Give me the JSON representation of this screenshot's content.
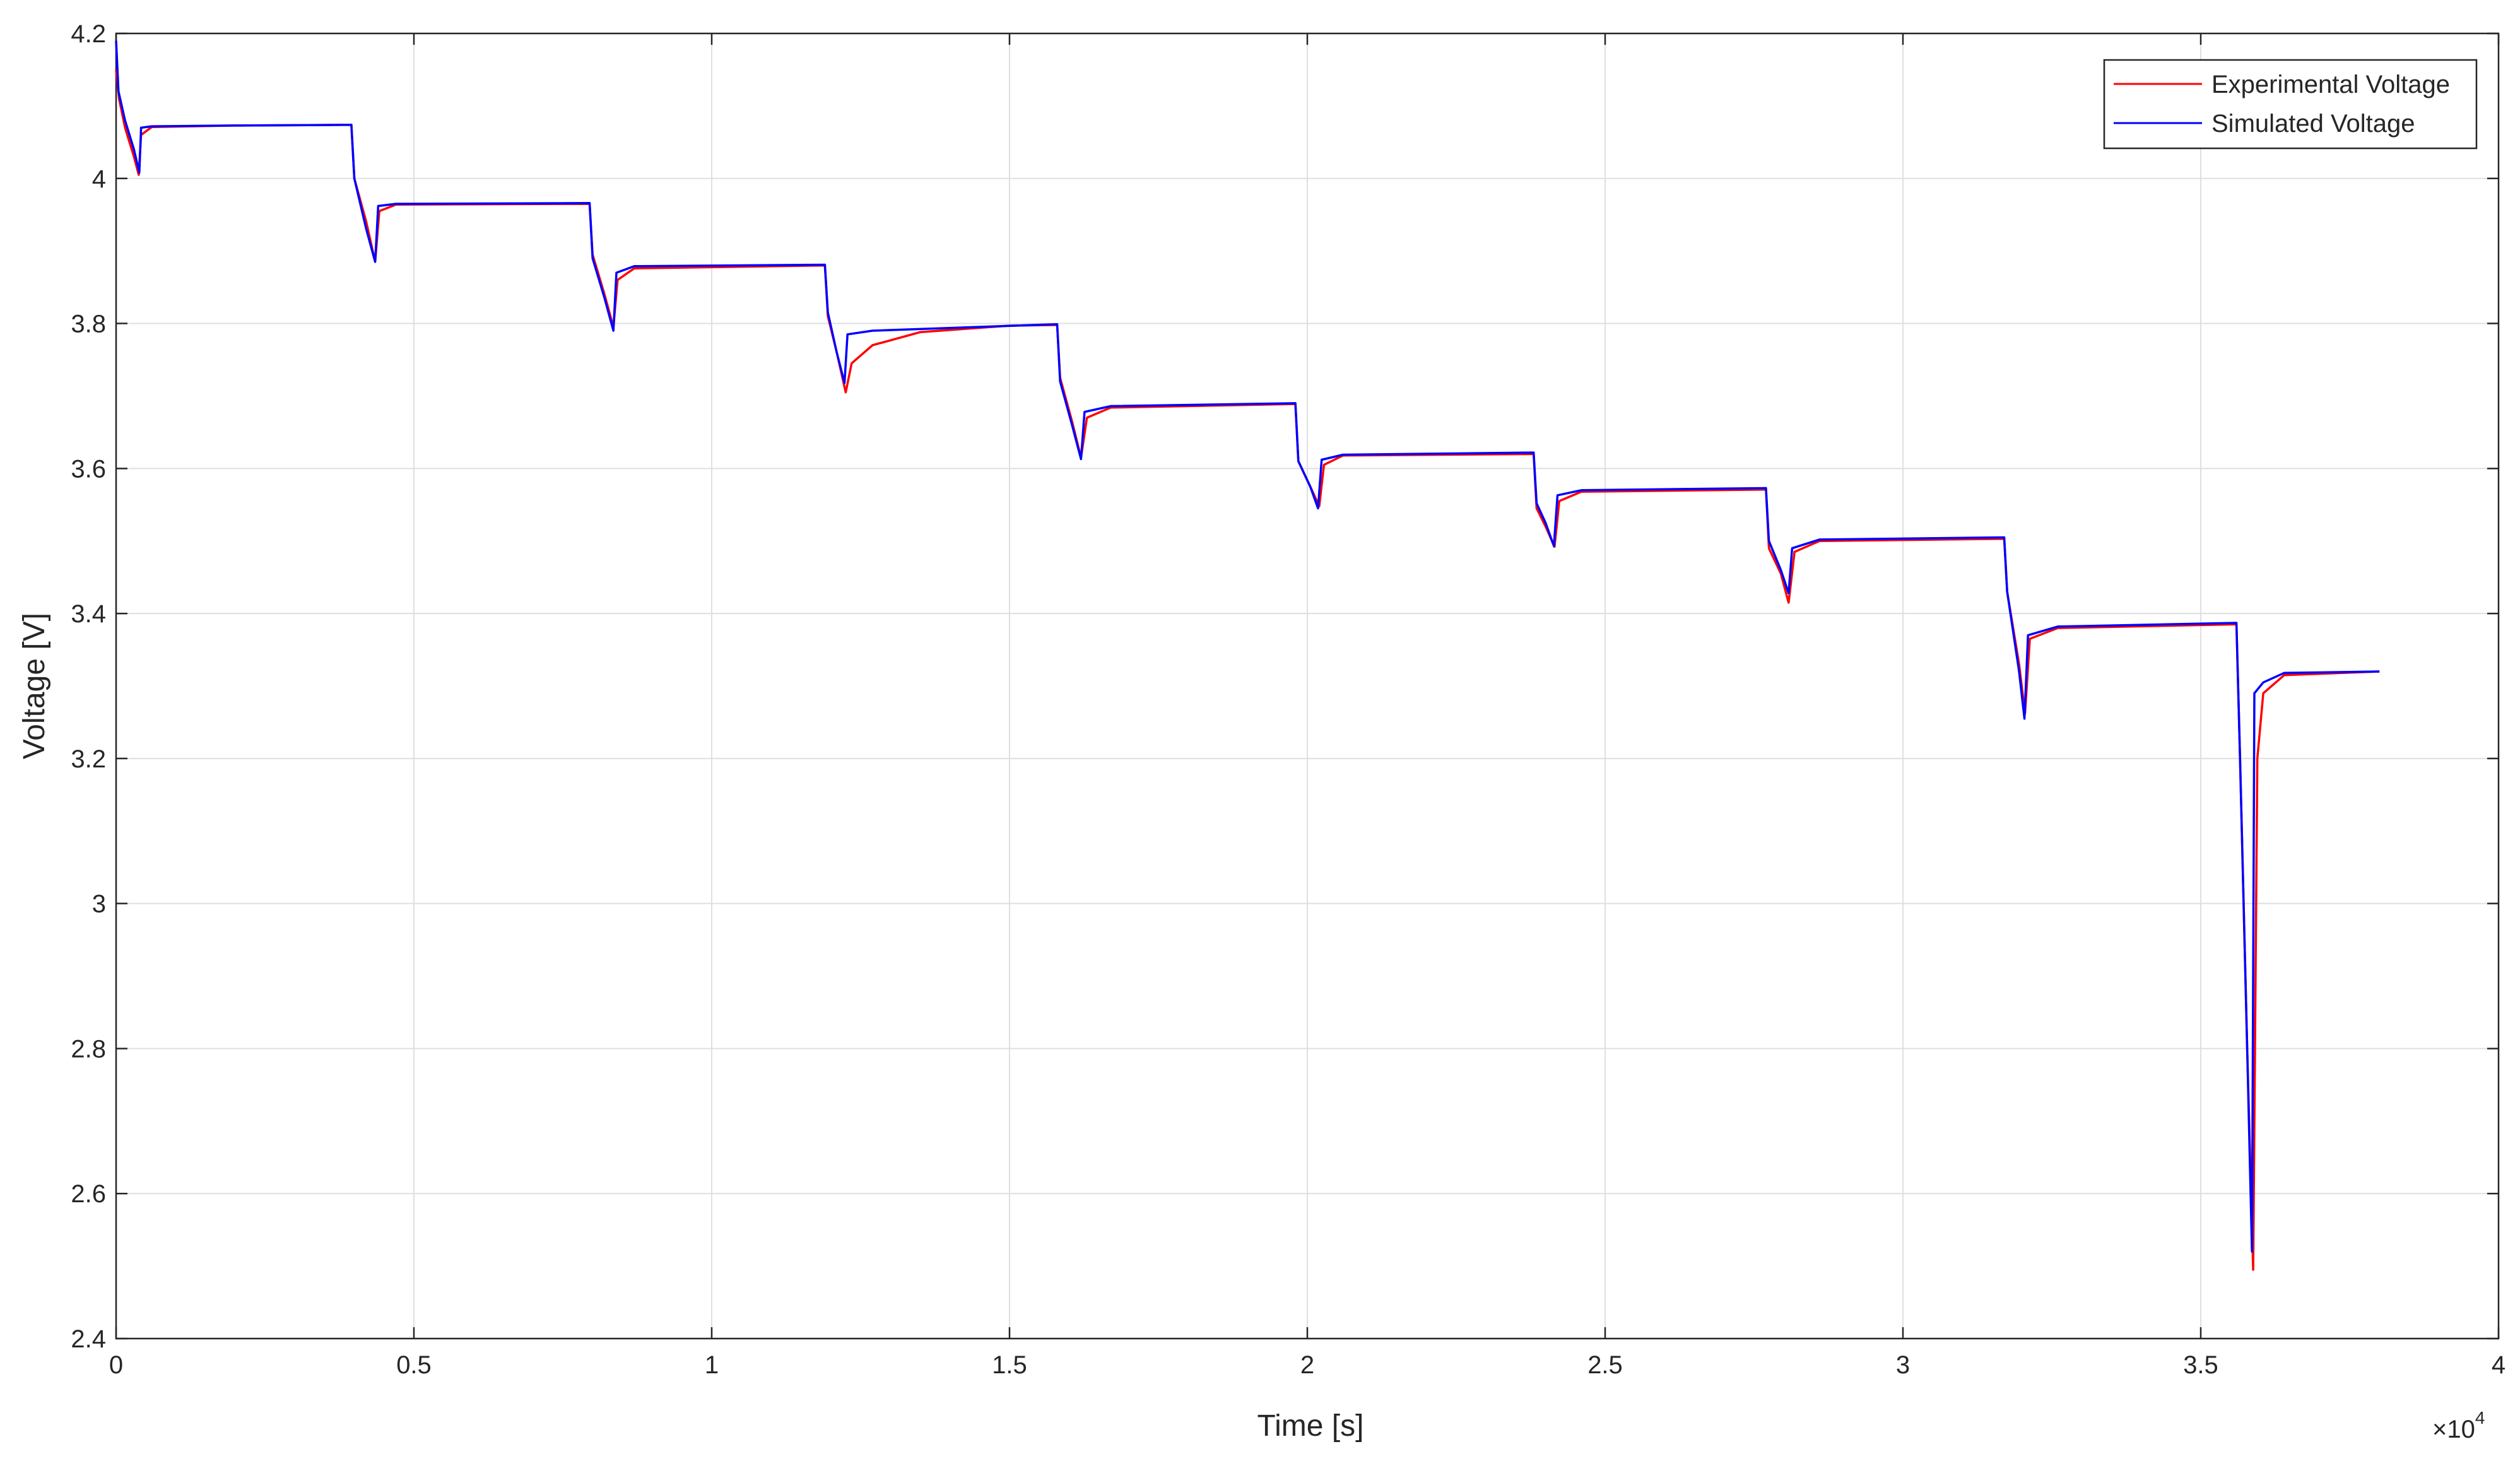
{
  "chart_data": {
    "type": "line",
    "xlabel": "Time [s]",
    "ylabel": "Voltage [V]",
    "x_exponent_label": "×10",
    "x_exponent": "4",
    "xlim": [
      0,
      40000
    ],
    "ylim": [
      2.4,
      4.2
    ],
    "grid": true,
    "legend_position": "top-right",
    "x_ticks": [
      0,
      5000,
      10000,
      15000,
      20000,
      25000,
      30000,
      35000,
      40000
    ],
    "x_tick_labels": [
      "0",
      "0.5",
      "1",
      "1.5",
      "2",
      "2.5",
      "3",
      "3.5",
      "4"
    ],
    "y_ticks": [
      2.4,
      2.6,
      2.8,
      3.0,
      3.2,
      3.4,
      3.6,
      3.8,
      4.0,
      4.2
    ],
    "y_tick_labels": [
      "2.4",
      "2.6",
      "2.8",
      "3",
      "3.2",
      "3.4",
      "3.6",
      "3.8",
      "4",
      "4.2"
    ],
    "series": [
      {
        "name": "Experimental Voltage",
        "color": "#ff0000",
        "points": [
          [
            0,
            4.15
          ],
          [
            50,
            4.11
          ],
          [
            150,
            4.07
          ],
          [
            300,
            4.03
          ],
          [
            380,
            4.005
          ],
          [
            420,
            4.06
          ],
          [
            600,
            4.071
          ],
          [
            2000,
            4.073
          ],
          [
            3950,
            4.074
          ],
          [
            4000,
            4.0
          ],
          [
            4200,
            3.94
          ],
          [
            4350,
            3.885
          ],
          [
            4420,
            3.955
          ],
          [
            4700,
            3.964
          ],
          [
            7950,
            3.965
          ],
          [
            8000,
            3.895
          ],
          [
            8200,
            3.84
          ],
          [
            8350,
            3.795
          ],
          [
            8420,
            3.86
          ],
          [
            8700,
            3.876
          ],
          [
            11900,
            3.88
          ],
          [
            11950,
            3.81
          ],
          [
            12100,
            3.76
          ],
          [
            12250,
            3.705
          ],
          [
            12350,
            3.745
          ],
          [
            12700,
            3.77
          ],
          [
            13500,
            3.788
          ],
          [
            15000,
            3.797
          ],
          [
            15800,
            3.798
          ],
          [
            15850,
            3.725
          ],
          [
            16050,
            3.665
          ],
          [
            16200,
            3.615
          ],
          [
            16300,
            3.67
          ],
          [
            16700,
            3.684
          ],
          [
            19800,
            3.689
          ],
          [
            19850,
            3.61
          ],
          [
            20050,
            3.575
          ],
          [
            20200,
            3.548
          ],
          [
            20280,
            3.605
          ],
          [
            20600,
            3.618
          ],
          [
            23800,
            3.62
          ],
          [
            23850,
            3.545
          ],
          [
            24000,
            3.52
          ],
          [
            24150,
            3.492
          ],
          [
            24230,
            3.555
          ],
          [
            24600,
            3.568
          ],
          [
            27700,
            3.571
          ],
          [
            27750,
            3.49
          ],
          [
            27950,
            3.455
          ],
          [
            28080,
            3.415
          ],
          [
            28180,
            3.485
          ],
          [
            28600,
            3.5
          ],
          [
            31700,
            3.503
          ],
          [
            31750,
            3.43
          ],
          [
            31950,
            3.33
          ],
          [
            32050,
            3.262
          ],
          [
            32130,
            3.365
          ],
          [
            32600,
            3.38
          ],
          [
            35600,
            3.385
          ],
          [
            35660,
            3.2
          ],
          [
            35780,
            2.8
          ],
          [
            35880,
            2.495
          ],
          [
            35950,
            3.2
          ],
          [
            36050,
            3.29
          ],
          [
            36400,
            3.315
          ],
          [
            38000,
            3.32
          ]
        ]
      },
      {
        "name": "Simulated Voltage",
        "color": "#0000ff",
        "points": [
          [
            0,
            4.19
          ],
          [
            40,
            4.12
          ],
          [
            150,
            4.08
          ],
          [
            300,
            4.04
          ],
          [
            390,
            4.008
          ],
          [
            420,
            4.07
          ],
          [
            600,
            4.072
          ],
          [
            2000,
            4.073
          ],
          [
            3950,
            4.074
          ],
          [
            4000,
            4.0
          ],
          [
            4200,
            3.93
          ],
          [
            4350,
            3.885
          ],
          [
            4400,
            3.962
          ],
          [
            4700,
            3.965
          ],
          [
            7950,
            3.966
          ],
          [
            8000,
            3.89
          ],
          [
            8200,
            3.835
          ],
          [
            8350,
            3.79
          ],
          [
            8400,
            3.87
          ],
          [
            8700,
            3.879
          ],
          [
            11900,
            3.881
          ],
          [
            11950,
            3.815
          ],
          [
            12100,
            3.76
          ],
          [
            12230,
            3.718
          ],
          [
            12280,
            3.785
          ],
          [
            12700,
            3.79
          ],
          [
            15800,
            3.799
          ],
          [
            15850,
            3.72
          ],
          [
            16050,
            3.66
          ],
          [
            16200,
            3.613
          ],
          [
            16260,
            3.678
          ],
          [
            16700,
            3.686
          ],
          [
            19800,
            3.69
          ],
          [
            19850,
            3.61
          ],
          [
            20050,
            3.575
          ],
          [
            20180,
            3.545
          ],
          [
            20240,
            3.612
          ],
          [
            20600,
            3.619
          ],
          [
            23800,
            3.622
          ],
          [
            23850,
            3.552
          ],
          [
            24000,
            3.525
          ],
          [
            24140,
            3.493
          ],
          [
            24200,
            3.563
          ],
          [
            24600,
            3.57
          ],
          [
            27700,
            3.573
          ],
          [
            27750,
            3.5
          ],
          [
            27950,
            3.46
          ],
          [
            28080,
            3.428
          ],
          [
            28140,
            3.49
          ],
          [
            28600,
            3.502
          ],
          [
            31700,
            3.505
          ],
          [
            31750,
            3.43
          ],
          [
            31950,
            3.32
          ],
          [
            32040,
            3.255
          ],
          [
            32100,
            3.37
          ],
          [
            32600,
            3.382
          ],
          [
            35600,
            3.387
          ],
          [
            35660,
            3.2
          ],
          [
            35780,
            2.8
          ],
          [
            35860,
            2.52
          ],
          [
            35900,
            3.29
          ],
          [
            36050,
            3.305
          ],
          [
            36400,
            3.318
          ],
          [
            38000,
            3.32
          ]
        ]
      }
    ]
  }
}
